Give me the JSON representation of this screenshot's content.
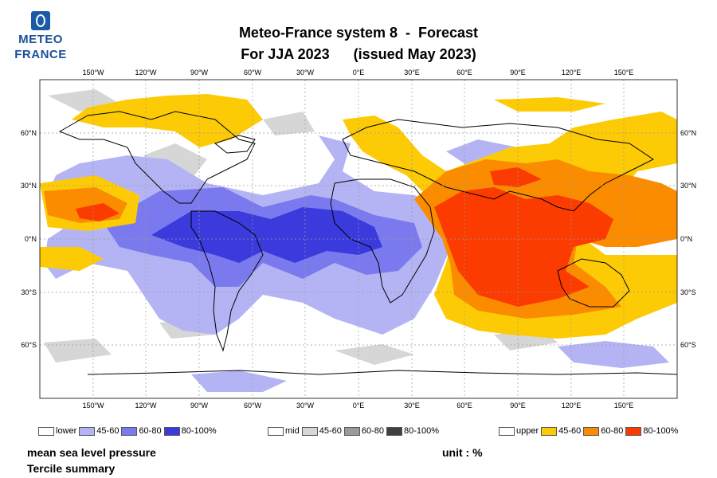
{
  "logo": {
    "line1": "METEO",
    "line2": "FRANCE"
  },
  "title": {
    "line1": "Meteo-France system 8  -  Forecast",
    "line2": "For JJA 2023      (issued May 2023)"
  },
  "axes": {
    "lon_labels": [
      "150°W",
      "120°W",
      "90°W",
      "60°W",
      "30°W",
      "0°E",
      "30°E",
      "60°E",
      "90°E",
      "120°E",
      "150°E"
    ],
    "lat_labels": [
      "60°N",
      "30°N",
      "0°N",
      "30°S",
      "60°S"
    ]
  },
  "legend": {
    "lower": {
      "label": "lower",
      "items": [
        {
          "label": "45-60",
          "color": "#b4b4f5"
        },
        {
          "label": "60-80",
          "color": "#7a7aee"
        },
        {
          "label": "80-100%",
          "color": "#3a3add"
        }
      ]
    },
    "mid": {
      "label": "mid",
      "items": [
        {
          "label": "45-60",
          "color": "#d6d6d6"
        },
        {
          "label": "60-80",
          "color": "#9a9a9a"
        },
        {
          "label": "80-100%",
          "color": "#404040"
        }
      ]
    },
    "upper": {
      "label": "upper",
      "items": [
        {
          "label": "45-60",
          "color": "#fccb05"
        },
        {
          "label": "60-80",
          "color": "#fb8c00"
        },
        {
          "label": "80-100%",
          "color": "#fb3b00"
        }
      ]
    }
  },
  "footer": {
    "variable": "mean sea level pressure",
    "summary": "Tercile summary",
    "unit": "unit : %"
  }
}
